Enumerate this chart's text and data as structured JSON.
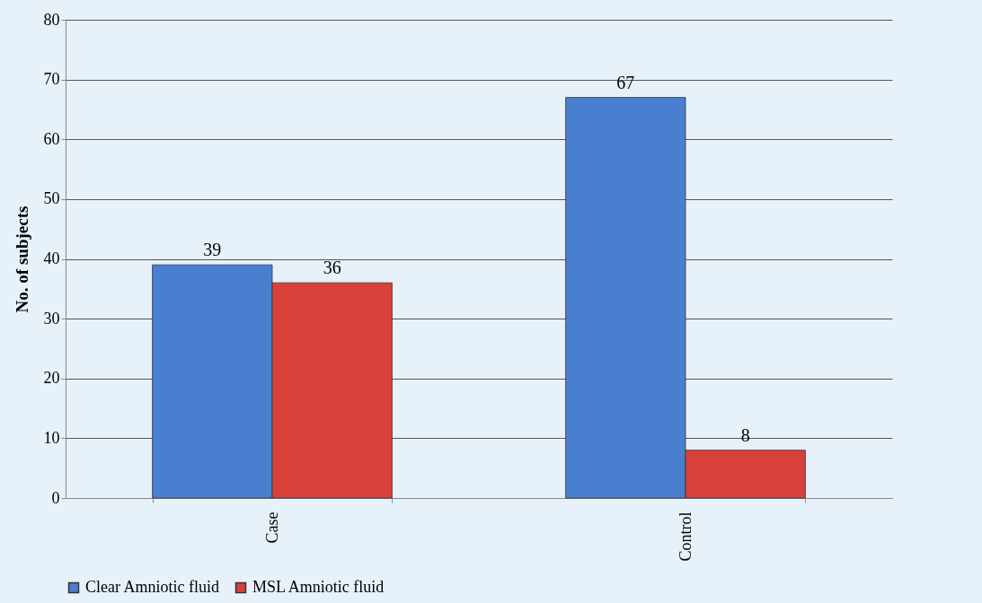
{
  "chart_data": {
    "type": "bar",
    "ylabel": "No. of subjects",
    "categories": [
      "Case",
      "Control"
    ],
    "series": [
      {
        "name": "Clear Amniotic fluid",
        "color": "#4a7fd0",
        "values": [
          39,
          67
        ]
      },
      {
        "name": "MSL Amniotic fluid",
        "color": "#d9403a",
        "values": [
          36,
          8
        ]
      }
    ],
    "ylim": [
      0,
      80
    ],
    "yticks": [
      0,
      10,
      20,
      30,
      40,
      50,
      60,
      70,
      80
    ],
    "grid": "y",
    "legend": "bottom",
    "data_labels": true
  }
}
